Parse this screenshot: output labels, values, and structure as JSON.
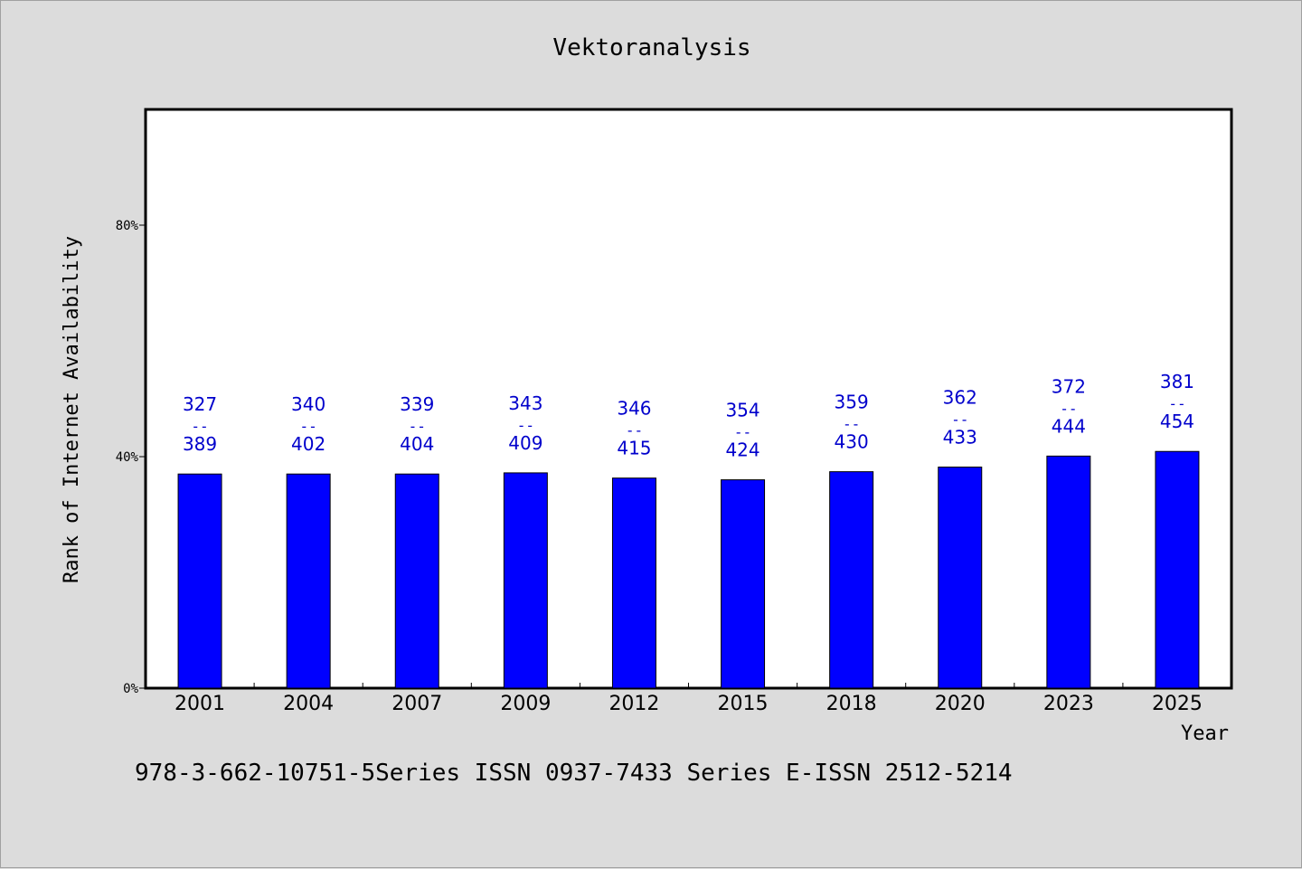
{
  "chart_data": {
    "type": "bar",
    "title": "Vektoranalysis",
    "xlabel": "Year",
    "ylabel": "Rank of Internet Availability",
    "ylim": [
      0,
      100
    ],
    "yticks": [
      {
        "value": 0,
        "label": "0%"
      },
      {
        "value": 40,
        "label": "40%"
      },
      {
        "value": 80,
        "label": "80%"
      }
    ],
    "categories": [
      "2001",
      "2004",
      "2007",
      "2009",
      "2012",
      "2015",
      "2018",
      "2020",
      "2023",
      "2025"
    ],
    "values": [
      37,
      37,
      37,
      37.2,
      36.3,
      36,
      37.4,
      38.2,
      40.1,
      40.9
    ],
    "labels": [
      {
        "top": "327",
        "sep": "--",
        "bottom": "389"
      },
      {
        "top": "340",
        "sep": "--",
        "bottom": "402"
      },
      {
        "top": "339",
        "sep": "--",
        "bottom": "404"
      },
      {
        "top": "343",
        "sep": "--",
        "bottom": "409"
      },
      {
        "top": "346",
        "sep": "--",
        "bottom": "415"
      },
      {
        "top": "354",
        "sep": "--",
        "bottom": "424"
      },
      {
        "top": "359",
        "sep": "--",
        "bottom": "430"
      },
      {
        "top": "362",
        "sep": "--",
        "bottom": "433"
      },
      {
        "top": "372",
        "sep": "--",
        "bottom": "444"
      },
      {
        "top": "381",
        "sep": "--",
        "bottom": "454"
      }
    ],
    "bar_color": "#0000ff",
    "label_color": "#0000cc",
    "grid": false,
    "legend": "none"
  },
  "footer": "978-3-662-10751-5Series ISSN 0937-7433 Series E-ISSN 2512-5214"
}
